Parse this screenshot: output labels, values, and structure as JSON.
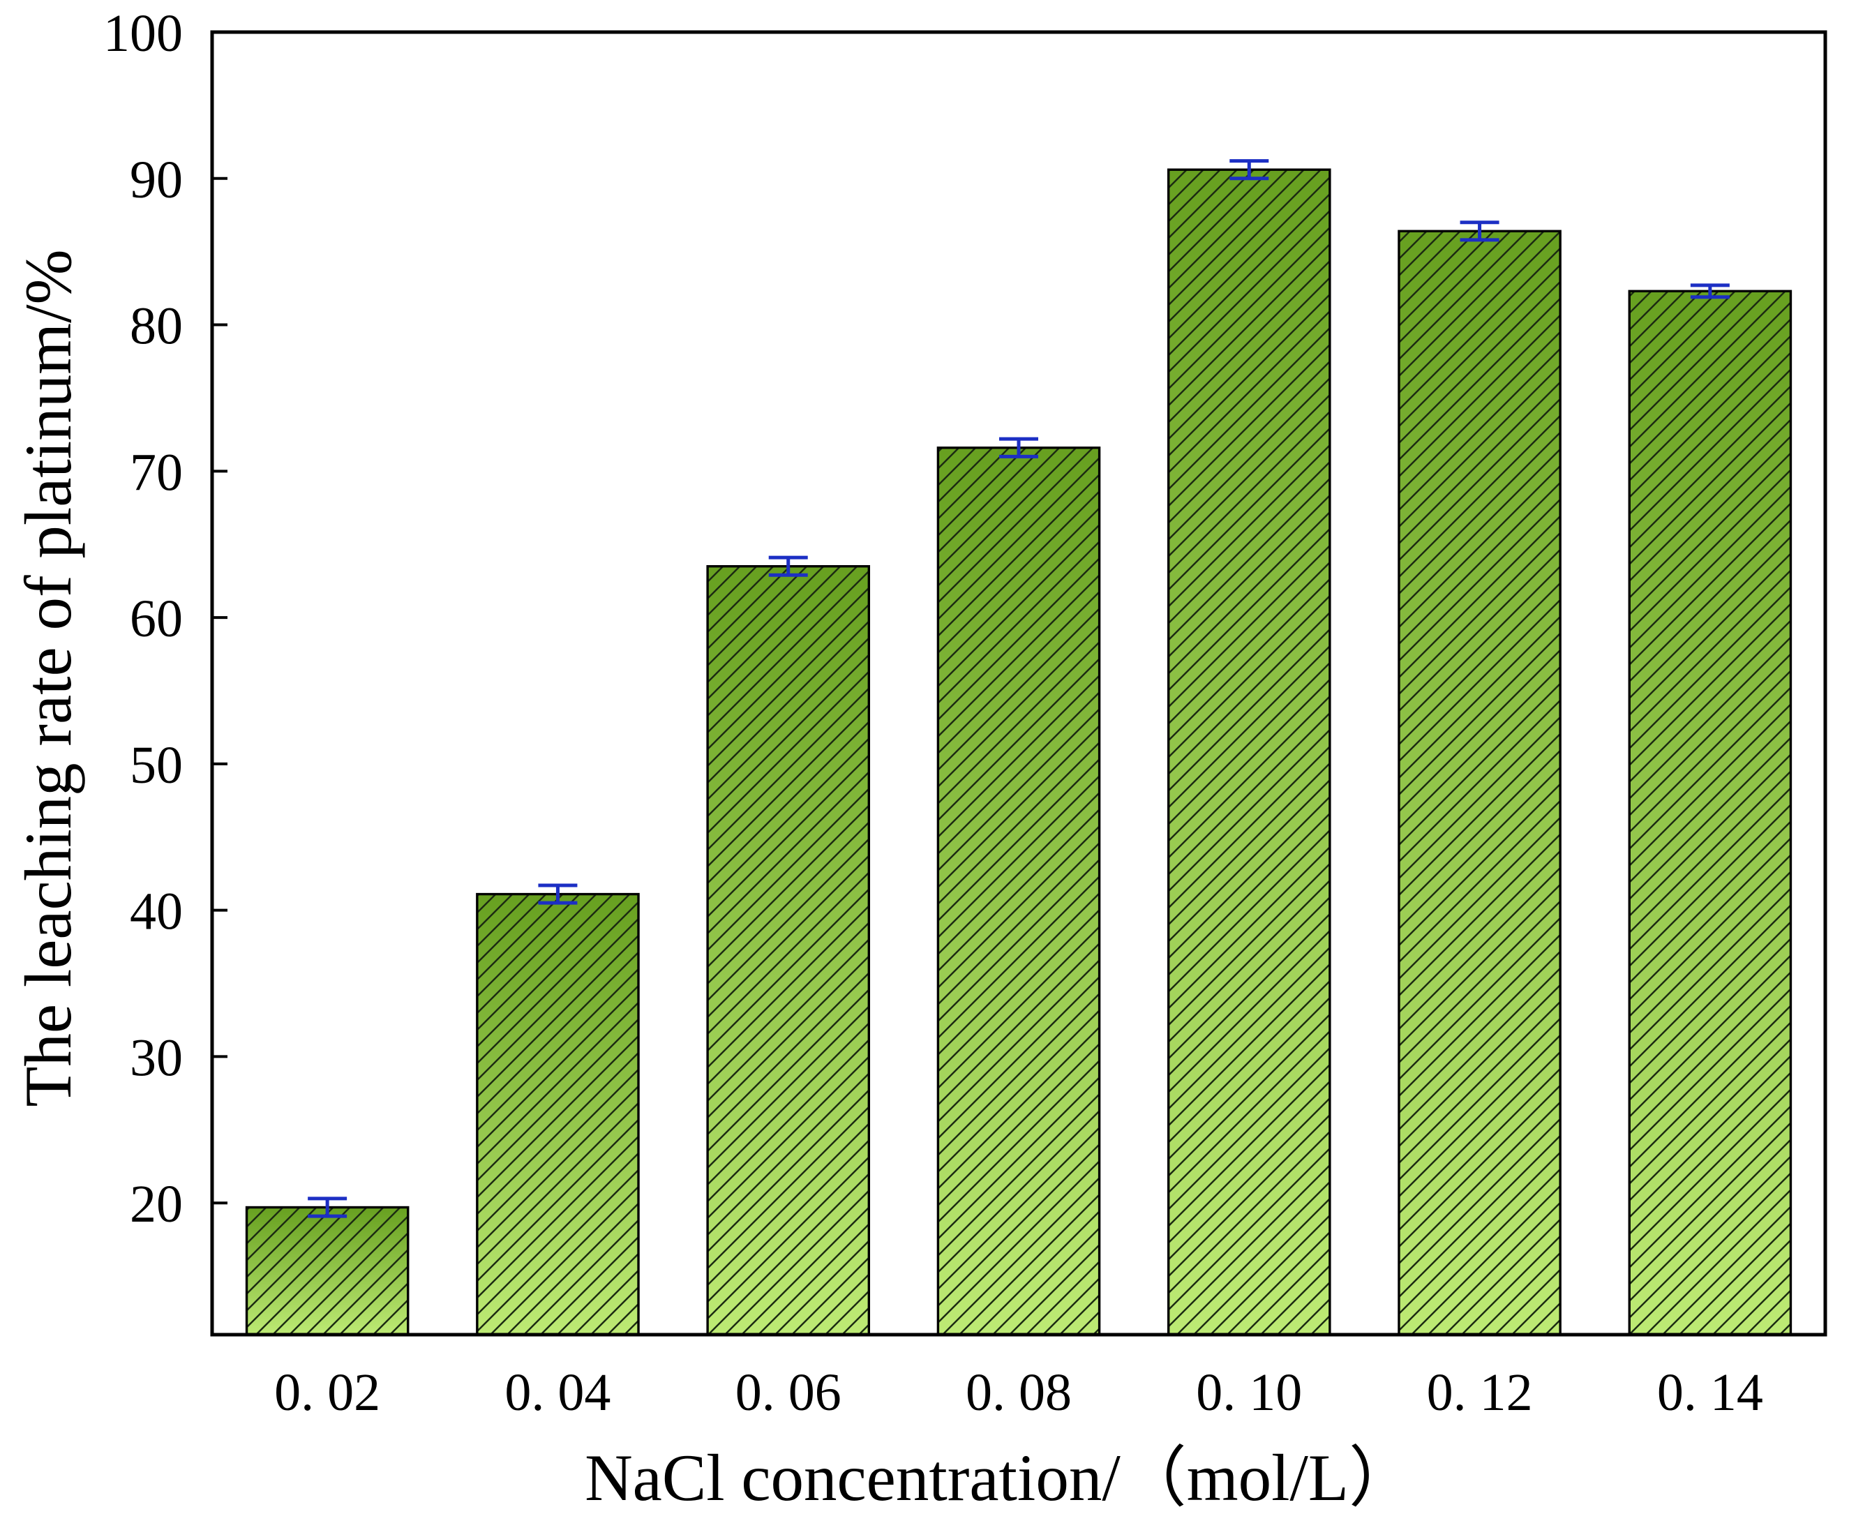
{
  "chart_data": {
    "type": "bar",
    "title": "",
    "xlabel": "NaCl concentration/（mol/L）",
    "ylabel": "The leaching rate of platinum/%",
    "categories": [
      "0. 02",
      "0. 04",
      "0. 06",
      "0. 08",
      "0. 10",
      "0. 12",
      "0. 14"
    ],
    "values": [
      19.7,
      41.1,
      63.5,
      71.6,
      90.6,
      86.4,
      82.3
    ],
    "errors": [
      0.6,
      0.6,
      0.6,
      0.6,
      0.6,
      0.6,
      0.4
    ],
    "ylim": [
      11,
      100
    ],
    "yticks": [
      20,
      30,
      40,
      50,
      60,
      70,
      80,
      90,
      100
    ],
    "grid": false,
    "legend": "none"
  },
  "colors": {
    "bar_top": "#67a020",
    "bar_bottom": "#bdea74",
    "hatch": "#1c2b12",
    "bar_edge": "#000000",
    "error_bar": "#1c2fc4",
    "axis": "#000000"
  }
}
